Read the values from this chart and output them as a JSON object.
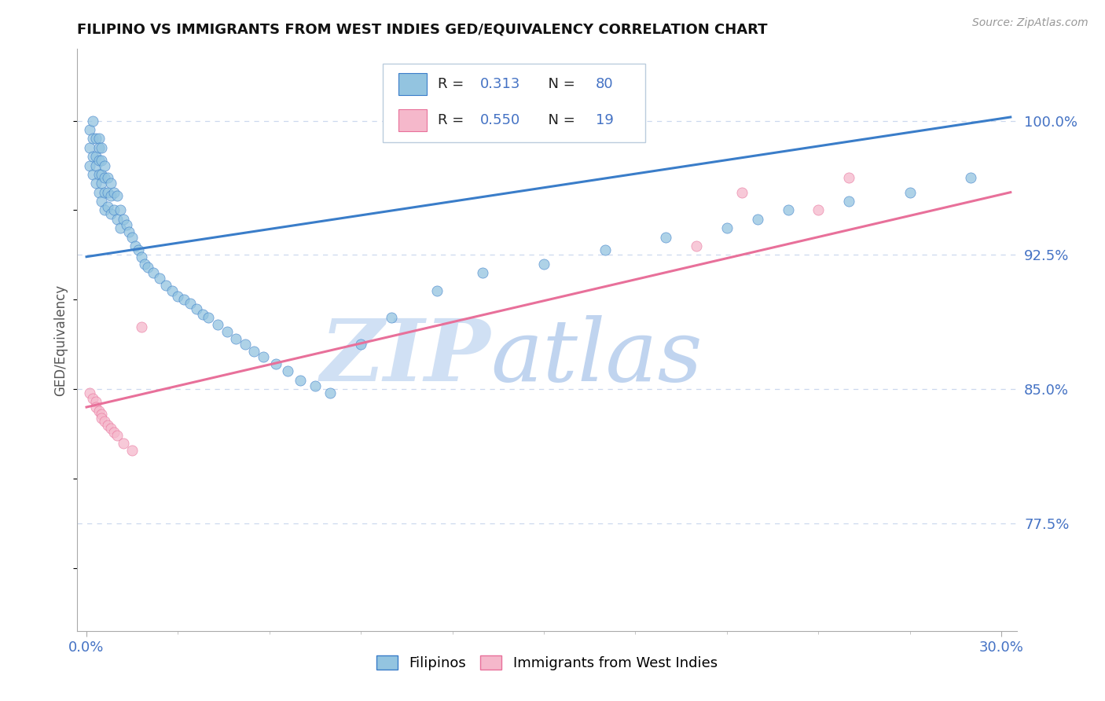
{
  "title": "FILIPINO VS IMMIGRANTS FROM WEST INDIES GED/EQUIVALENCY CORRELATION CHART",
  "source": "Source: ZipAtlas.com",
  "ylabel": "GED/Equivalency",
  "ytick_labels": [
    "77.5%",
    "85.0%",
    "92.5%",
    "100.0%"
  ],
  "ytick_values": [
    0.775,
    0.85,
    0.925,
    1.0
  ],
  "xlim": [
    -0.003,
    0.305
  ],
  "ylim": [
    0.715,
    1.04
  ],
  "r_filipino": 0.313,
  "n_filipino": 80,
  "r_westindies": 0.55,
  "n_westindies": 19,
  "legend_labels": [
    "Filipinos",
    "Immigrants from West Indies"
  ],
  "color_filipino": "#93c4e0",
  "color_westindies": "#f5b8cb",
  "trendline_filipino_color": "#3a7dc9",
  "trendline_westindies_color": "#e8709a",
  "background_color": "#ffffff",
  "grid_color": "#ccd8ee",
  "title_color": "#111111",
  "axis_label_color": "#4472c4",
  "watermark_zip_color": "#d0e0f4",
  "watermark_atlas_color": "#c0d4ef",
  "fil_trendline_x0": 0.0,
  "fil_trendline_y0": 0.924,
  "fil_trendline_x1": 0.303,
  "fil_trendline_y1": 1.002,
  "wi_trendline_x0": 0.0,
  "wi_trendline_y0": 0.84,
  "wi_trendline_x1": 0.303,
  "wi_trendline_y1": 0.96,
  "filipino_x": [
    0.001,
    0.001,
    0.001,
    0.002,
    0.002,
    0.002,
    0.002,
    0.003,
    0.003,
    0.003,
    0.003,
    0.004,
    0.004,
    0.004,
    0.004,
    0.004,
    0.005,
    0.005,
    0.005,
    0.005,
    0.005,
    0.006,
    0.006,
    0.006,
    0.006,
    0.007,
    0.007,
    0.007,
    0.008,
    0.008,
    0.008,
    0.009,
    0.009,
    0.01,
    0.01,
    0.011,
    0.011,
    0.012,
    0.013,
    0.014,
    0.015,
    0.016,
    0.017,
    0.018,
    0.019,
    0.02,
    0.022,
    0.024,
    0.026,
    0.028,
    0.03,
    0.032,
    0.034,
    0.036,
    0.038,
    0.04,
    0.043,
    0.046,
    0.049,
    0.052,
    0.055,
    0.058,
    0.062,
    0.066,
    0.07,
    0.075,
    0.08,
    0.09,
    0.1,
    0.115,
    0.13,
    0.15,
    0.17,
    0.19,
    0.21,
    0.22,
    0.23,
    0.25,
    0.27,
    0.29
  ],
  "filipino_y": [
    0.995,
    0.985,
    0.975,
    1.0,
    0.99,
    0.98,
    0.97,
    0.99,
    0.98,
    0.975,
    0.965,
    0.99,
    0.985,
    0.978,
    0.97,
    0.96,
    0.985,
    0.978,
    0.97,
    0.965,
    0.955,
    0.975,
    0.968,
    0.96,
    0.95,
    0.968,
    0.96,
    0.952,
    0.965,
    0.958,
    0.948,
    0.96,
    0.95,
    0.958,
    0.945,
    0.95,
    0.94,
    0.945,
    0.942,
    0.938,
    0.935,
    0.93,
    0.928,
    0.924,
    0.92,
    0.918,
    0.915,
    0.912,
    0.908,
    0.905,
    0.902,
    0.9,
    0.898,
    0.895,
    0.892,
    0.89,
    0.886,
    0.882,
    0.878,
    0.875,
    0.871,
    0.868,
    0.864,
    0.86,
    0.855,
    0.852,
    0.848,
    0.875,
    0.89,
    0.905,
    0.915,
    0.92,
    0.928,
    0.935,
    0.94,
    0.945,
    0.95,
    0.955,
    0.96,
    0.968
  ],
  "westindies_x": [
    0.001,
    0.002,
    0.003,
    0.003,
    0.004,
    0.005,
    0.005,
    0.006,
    0.007,
    0.008,
    0.009,
    0.01,
    0.012,
    0.015,
    0.018,
    0.2,
    0.215,
    0.24,
    0.25
  ],
  "westindies_y": [
    0.848,
    0.845,
    0.843,
    0.84,
    0.838,
    0.836,
    0.834,
    0.832,
    0.83,
    0.828,
    0.826,
    0.824,
    0.82,
    0.816,
    0.885,
    0.93,
    0.96,
    0.95,
    0.968
  ]
}
